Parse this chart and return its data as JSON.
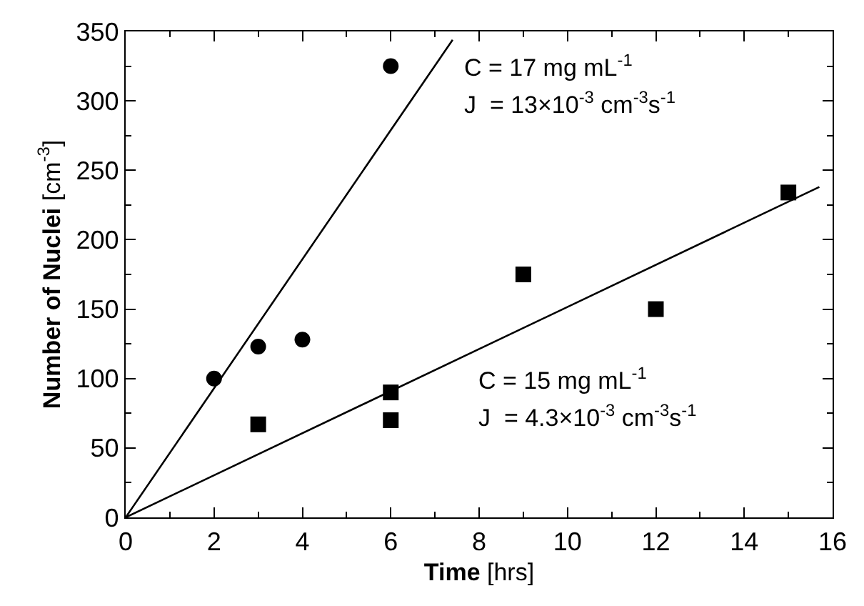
{
  "chart_data": {
    "type": "scatter",
    "xlabel": "Time [hrs]",
    "ylabel": "Number of Nuclei [cm$^{-3}$]",
    "xlim": [
      0,
      16
    ],
    "xticks": [
      0,
      2,
      4,
      6,
      8,
      10,
      12,
      14,
      16
    ],
    "ylim": [
      0,
      350
    ],
    "yticks": [
      0,
      50,
      100,
      150,
      200,
      250,
      300,
      350
    ],
    "series": [
      {
        "marker": "circle",
        "color": "#000000",
        "x": [
          2,
          3,
          4,
          6
        ],
        "values": [
          100,
          123,
          128,
          325
        ]
      },
      {
        "marker": "square",
        "color": "#000000",
        "x": [
          3,
          6,
          6,
          9,
          12,
          15
        ],
        "values": [
          67,
          90,
          70,
          175,
          150,
          234
        ]
      },
      {
        "type": "line",
        "marker": "none",
        "line_style": "solid",
        "color": "#000000",
        "x": [
          0,
          7.4
        ],
        "values": [
          0,
          344
        ]
      },
      {
        "type": "line",
        "marker": "none",
        "line_style": "solid",
        "color": "#000000",
        "x": [
          0,
          15.7
        ],
        "values": [
          0,
          238
        ]
      }
    ],
    "annotations": [
      "C = 17 mg mL$^{-1}$",
      "J  = 13×10$^{-3}$ cm$^{-3}$s$^{-1}$",
      "C = 15 mg mL$^{-1}$",
      "J  = 4.3×10$^{-3}$ cm$^{-3}$s$^{-1}$"
    ]
  }
}
